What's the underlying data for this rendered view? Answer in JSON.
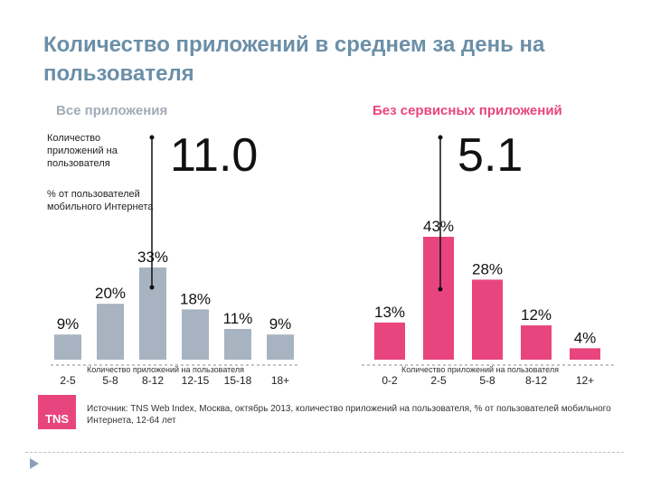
{
  "title": "Количество приложений в среднем за день на пользователя",
  "legend": {
    "count_label": "Количество приложений на пользователя",
    "percent_label": "% от пользователей мобильного Интернета"
  },
  "source": {
    "logo_text": "TNS",
    "text": "Источник: TNS Web Index, Москва, октябрь 2013, количество приложений на пользователя, % от пользователей мобильного Интернета, 12-64 лет"
  },
  "colors": {
    "title": "#6b8fa8",
    "left_bars": "#a8b3c2",
    "right_bars": "#e8457e",
    "brand": "#e8457e"
  },
  "chart_data": [
    {
      "type": "bar",
      "title": "Все приложения",
      "average": "11.0",
      "xlabel": "Количество приложений на пользователя",
      "categories": [
        "2-5",
        "5-8",
        "8-12",
        "12-15",
        "15-18",
        "18+"
      ],
      "values": [
        9,
        20,
        33,
        18,
        11,
        9
      ],
      "value_labels": [
        "9%",
        "20%",
        "33%",
        "18%",
        "11%",
        "9%"
      ],
      "ylim": [
        0,
        33
      ]
    },
    {
      "type": "bar",
      "title": "Без сервисных приложений",
      "average": "5.1",
      "xlabel": "Количество приложений на пользователя",
      "categories": [
        "0-2",
        "2-5",
        "5-8",
        "8-12",
        "12+"
      ],
      "values": [
        13,
        43,
        28,
        12,
        4
      ],
      "value_labels": [
        "13%",
        "43%",
        "28%",
        "12%",
        "4%"
      ],
      "ylim": [
        0,
        43
      ]
    }
  ]
}
